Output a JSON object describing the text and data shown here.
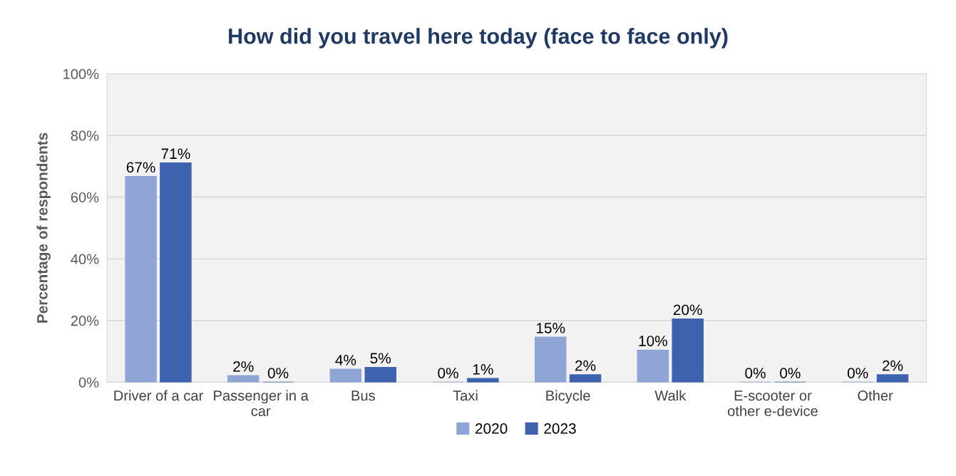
{
  "chart_data": {
    "type": "bar",
    "title": "How did you travel here today (face to face only)",
    "ylabel": "Percentage of respondents",
    "categories": [
      "Driver of a car",
      "Passenger in a\ncar",
      "Bus",
      "Taxi",
      "Bicycle",
      "Walk",
      "E-scooter or\nother e-device",
      "Other"
    ],
    "series": [
      {
        "name": "2020",
        "color": "#8fa5d6",
        "values": [
          66.7,
          2.1,
          4.2,
          0,
          14.6,
          10.4,
          0,
          0
        ],
        "value_labels": [
          "67%",
          "2%",
          "4%",
          "0%",
          "15%",
          "10%",
          "0%",
          "0%"
        ]
      },
      {
        "name": "2023",
        "color": "#3d62ae",
        "values": [
          71.1,
          0,
          4.8,
          1.2,
          2.4,
          20.5,
          0,
          2.4
        ],
        "value_labels": [
          "71%",
          "0%",
          "5%",
          "1%",
          "2%",
          "20%",
          "0%",
          "2%"
        ]
      }
    ],
    "ylim": [
      0,
      100
    ],
    "yticks": [
      {
        "value": 0,
        "label": "0%"
      },
      {
        "value": 20,
        "label": "20%"
      },
      {
        "value": 40,
        "label": "40%"
      },
      {
        "value": 60,
        "label": "60%"
      },
      {
        "value": 80,
        "label": "80%"
      },
      {
        "value": 100,
        "label": "100%"
      }
    ],
    "grid": "y",
    "legend": "bottom"
  }
}
